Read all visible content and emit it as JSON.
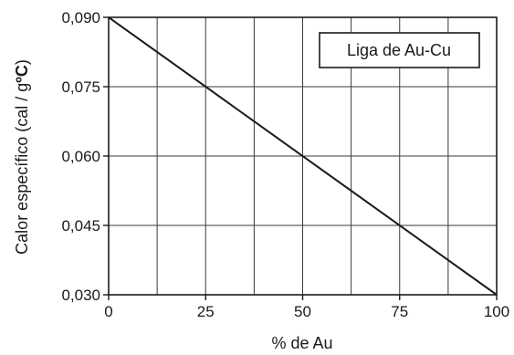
{
  "chart_data": {
    "type": "line",
    "title": "",
    "xlabel": "% de Au",
    "ylabel_parts": {
      "main": "Calor específico (cal / g",
      "unit_strong": "ºC",
      "close": ")"
    },
    "x_ticks": [
      "0",
      "25",
      "50",
      "75",
      "100"
    ],
    "y_ticks": [
      "0,030",
      "0,045",
      "0,060",
      "0,075",
      "0,090"
    ],
    "xlim": [
      0,
      100
    ],
    "ylim": [
      0.03,
      0.09
    ],
    "grid": true,
    "x_grid_step": 12.5,
    "y_grid_step": 0.015,
    "legend_position": "top-right",
    "annotation": "Liga de Au-Cu",
    "series": [
      {
        "x": [
          0,
          100
        ],
        "values": [
          0.09,
          0.03
        ],
        "color": "#1a1a1a"
      }
    ]
  }
}
